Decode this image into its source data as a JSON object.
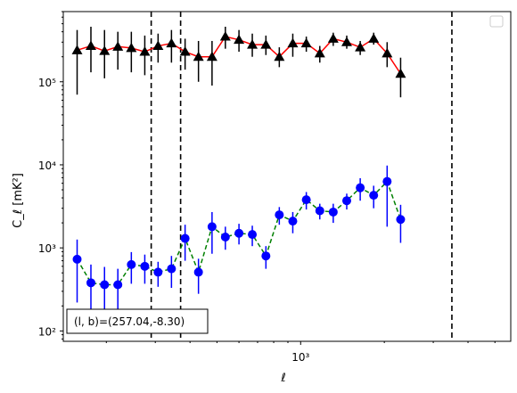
{
  "chart_data": {
    "type": "line",
    "xscale": "log",
    "yscale": "log",
    "xlim": [
      140,
      5700
    ],
    "ylim": [
      75,
      700000
    ],
    "xlabel": "ℓ",
    "ylabel": "C_ℓ  [mK²]",
    "x_tick_labels": [
      {
        "value": 1000,
        "label": "10³"
      }
    ],
    "y_tick_labels": [
      {
        "value": 100,
        "label": "10²"
      },
      {
        "value": 1000,
        "label": "10³"
      },
      {
        "value": 10000,
        "label": "10⁴"
      },
      {
        "value": 100000,
        "label": "10⁵"
      }
    ],
    "vlines": [
      290,
      370,
      3500
    ],
    "annotation": "(l, b)=(257.04,-8.30)",
    "legend": {
      "placement": "upper right",
      "entries": []
    },
    "series": [
      {
        "marker": "triangle",
        "color": "#000000",
        "line_color": "#ff0000",
        "line_style": "solid",
        "points": [
          {
            "x": 157,
            "y": 240000,
            "lo": 70000,
            "hi": 420000
          },
          {
            "x": 176,
            "y": 270000,
            "lo": 130000,
            "hi": 460000
          },
          {
            "x": 197,
            "y": 235000,
            "lo": 110000,
            "hi": 420000
          },
          {
            "x": 220,
            "y": 265000,
            "lo": 140000,
            "hi": 400000
          },
          {
            "x": 246,
            "y": 255000,
            "lo": 130000,
            "hi": 400000
          },
          {
            "x": 275,
            "y": 230000,
            "lo": 120000,
            "hi": 360000
          },
          {
            "x": 307,
            "y": 270000,
            "lo": 170000,
            "hi": 380000
          },
          {
            "x": 343,
            "y": 290000,
            "lo": 170000,
            "hi": 420000
          },
          {
            "x": 384,
            "y": 230000,
            "lo": 140000,
            "hi": 330000
          },
          {
            "x": 429,
            "y": 200000,
            "lo": 100000,
            "hi": 310000
          },
          {
            "x": 480,
            "y": 200000,
            "lo": 90000,
            "hi": 310000
          },
          {
            "x": 536,
            "y": 350000,
            "lo": 250000,
            "hi": 460000
          },
          {
            "x": 600,
            "y": 320000,
            "lo": 230000,
            "hi": 420000
          },
          {
            "x": 670,
            "y": 280000,
            "lo": 200000,
            "hi": 380000
          },
          {
            "x": 750,
            "y": 280000,
            "lo": 210000,
            "hi": 360000
          },
          {
            "x": 838,
            "y": 200000,
            "lo": 150000,
            "hi": 260000
          },
          {
            "x": 937,
            "y": 290000,
            "lo": 200000,
            "hi": 380000
          },
          {
            "x": 1048,
            "y": 290000,
            "lo": 230000,
            "hi": 350000
          },
          {
            "x": 1172,
            "y": 220000,
            "lo": 170000,
            "hi": 270000
          },
          {
            "x": 1310,
            "y": 330000,
            "lo": 270000,
            "hi": 390000
          },
          {
            "x": 1465,
            "y": 300000,
            "lo": 250000,
            "hi": 360000
          },
          {
            "x": 1638,
            "y": 260000,
            "lo": 210000,
            "hi": 310000
          },
          {
            "x": 1831,
            "y": 330000,
            "lo": 280000,
            "hi": 390000
          },
          {
            "x": 2047,
            "y": 220000,
            "lo": 150000,
            "hi": 300000
          },
          {
            "x": 2289,
            "y": 125000,
            "lo": 65000,
            "hi": 195000
          }
        ]
      },
      {
        "marker": "circle",
        "color": "#0000ff",
        "line_color": "#008000",
        "line_style": "dashed",
        "points": [
          {
            "x": 157,
            "y": 730,
            "lo": 220,
            "hi": 1260
          },
          {
            "x": 176,
            "y": 380,
            "lo": 140,
            "hi": 630
          },
          {
            "x": 197,
            "y": 360,
            "lo": 130,
            "hi": 590
          },
          {
            "x": 220,
            "y": 360,
            "lo": 150,
            "hi": 560
          },
          {
            "x": 246,
            "y": 630,
            "lo": 370,
            "hi": 890
          },
          {
            "x": 275,
            "y": 600,
            "lo": 370,
            "hi": 830
          },
          {
            "x": 307,
            "y": 510,
            "lo": 340,
            "hi": 680
          },
          {
            "x": 343,
            "y": 560,
            "lo": 330,
            "hi": 800
          },
          {
            "x": 384,
            "y": 1300,
            "lo": 700,
            "hi": 1900
          },
          {
            "x": 429,
            "y": 510,
            "lo": 280,
            "hi": 740
          },
          {
            "x": 480,
            "y": 1800,
            "lo": 850,
            "hi": 2700
          },
          {
            "x": 536,
            "y": 1350,
            "lo": 950,
            "hi": 1800
          },
          {
            "x": 600,
            "y": 1500,
            "lo": 1100,
            "hi": 1950
          },
          {
            "x": 670,
            "y": 1450,
            "lo": 1050,
            "hi": 1850
          },
          {
            "x": 750,
            "y": 800,
            "lo": 560,
            "hi": 1050
          },
          {
            "x": 838,
            "y": 2500,
            "lo": 1900,
            "hi": 3100
          },
          {
            "x": 937,
            "y": 2100,
            "lo": 1500,
            "hi": 2700
          },
          {
            "x": 1048,
            "y": 3800,
            "lo": 2900,
            "hi": 4700
          },
          {
            "x": 1172,
            "y": 2800,
            "lo": 2200,
            "hi": 3400
          },
          {
            "x": 1310,
            "y": 2700,
            "lo": 2000,
            "hi": 3400
          },
          {
            "x": 1465,
            "y": 3700,
            "lo": 2900,
            "hi": 4500
          },
          {
            "x": 1638,
            "y": 5300,
            "lo": 3700,
            "hi": 6900
          },
          {
            "x": 1831,
            "y": 4300,
            "lo": 3000,
            "hi": 5600
          },
          {
            "x": 2047,
            "y": 6300,
            "lo": 1800,
            "hi": 9800
          },
          {
            "x": 2289,
            "y": 2200,
            "lo": 1150,
            "hi": 3300
          }
        ]
      }
    ]
  }
}
